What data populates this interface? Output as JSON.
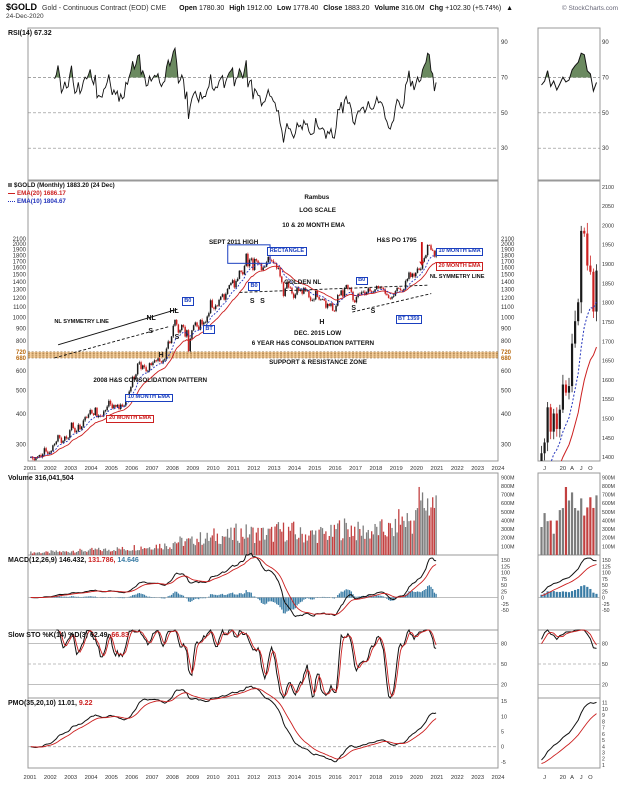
{
  "header": {
    "symbol": "$GOLD",
    "title": "Gold - Continuous Contract (EOD) CME",
    "source": "© StockCharts.com",
    "date": "24-Dec-2020",
    "quote": {
      "open_label": "Open",
      "open": "1780.30",
      "high_label": "High",
      "high": "1912.00",
      "low_label": "Low",
      "low": "1778.40",
      "close_label": "Close",
      "close": "1883.20",
      "volume_label": "Volume",
      "volume": "316.0M",
      "chg_label": "Chg",
      "chg": "+102.30 (+5.74%)",
      "chg_arrow": "▲"
    }
  },
  "panels": {
    "rsi": {
      "name": "RSI(14)",
      "value": "67.32"
    },
    "volume": {
      "name": "Volume",
      "value": "316,041,504"
    },
    "macd": {
      "name": "MACD(12,26,9)",
      "v1": "146.432,",
      "v2": "131.786,",
      "v3": "14.646"
    },
    "sto": {
      "name": "Slow STO %K(14) %D(3)",
      "v1": "62.49,",
      "v2": "66.83"
    },
    "pmo": {
      "name": "PMO(35,20,10)",
      "v1": "11.01,",
      "v2": "9.22"
    }
  },
  "colors": {
    "up": "#1a1a1a",
    "down": "#cc2020",
    "ema10": "#2233bb",
    "ema20": "#cc2020",
    "vol_up": "#7d7d7d",
    "vol_down": "#c24040",
    "macd_hist": "#3a7ca5",
    "macd_line": "#111111",
    "signal": "#cc2020",
    "rsi_fill": "#6b8a60",
    "rsi_line": "#111111",
    "sr_zone": "#eda23e",
    "sr_line": "#7a4a10",
    "sr_text": "#b86a10",
    "grid": "#999999",
    "axis_text": "#333333",
    "ann_blue": "#1a3fbf",
    "ann_red": "#cc2020"
  },
  "chart_data": {
    "type": "candlestick",
    "title": "$GOLD Gold - Continuous Contract (EOD) CME, Monthly",
    "timeframe": "monthly",
    "scale_note": "LOG SCALE",
    "x_domain_years": [
      2001,
      2024
    ],
    "x_tick_years": [
      2001,
      2002,
      2003,
      2004,
      2005,
      2006,
      2007,
      2008,
      2009,
      2010,
      2011,
      2012,
      2013,
      2014,
      2015,
      2016,
      2017,
      2018,
      2019,
      2020,
      2021,
      2022,
      2023,
      2024
    ],
    "price_scale": "log",
    "price_axis_ticks": [
      2100,
      2000,
      1900,
      1800,
      1700,
      1600,
      1500,
      1400,
      1300,
      1200,
      1100,
      1000,
      900,
      800,
      720,
      680,
      600,
      500,
      400,
      300
    ],
    "sr_zone": {
      "top": 720,
      "bottom": 680
    },
    "monthly_closes_2001_2020": [
      266,
      262,
      258,
      263,
      267,
      271,
      266,
      273,
      289,
      280,
      274,
      277,
      282,
      297,
      301,
      308,
      327,
      319,
      304,
      310,
      323,
      317,
      319,
      343,
      368,
      350,
      336,
      340,
      361,
      346,
      355,
      376,
      388,
      386,
      398,
      415,
      402,
      396,
      424,
      388,
      394,
      392,
      391,
      410,
      415,
      429,
      453,
      438,
      422,
      435,
      428,
      436,
      419,
      437,
      429,
      433,
      473,
      470,
      495,
      517,
      569,
      556,
      582,
      644,
      653,
      613,
      634,
      623,
      599,
      603,
      647,
      636,
      651,
      665,
      662,
      677,
      659,
      651,
      665,
      672,
      743,
      795,
      783,
      834,
      923,
      975,
      934,
      865,
      885,
      930,
      913,
      833,
      885,
      725,
      816,
      884,
      927,
      952,
      916,
      888,
      975,
      934,
      953,
      953,
      1008,
      1040,
      1175,
      1097,
      1083,
      1118,
      1114,
      1180,
      1215,
      1244,
      1181,
      1248,
      1308,
      1357,
      1384,
      1421,
      1327,
      1411,
      1439,
      1556,
      1535,
      1502,
      1628,
      1826,
      1622,
      1725,
      1746,
      1566,
      1737,
      1711,
      1669,
      1664,
      1564,
      1604,
      1615,
      1685,
      1774,
      1719,
      1711,
      1675,
      1661,
      1588,
      1594,
      1472,
      1394,
      1224,
      1313,
      1396,
      1327,
      1323,
      1253,
      1202,
      1240,
      1326,
      1284,
      1296,
      1250,
      1322,
      1282,
      1287,
      1208,
      1173,
      1176,
      1184,
      1283,
      1213,
      1183,
      1184,
      1190,
      1172,
      1095,
      1135,
      1114,
      1141,
      1065,
      1060,
      1116,
      1234,
      1233,
      1290,
      1215,
      1321,
      1357,
      1309,
      1317,
      1273,
      1174,
      1152,
      1211,
      1248,
      1247,
      1268,
      1275,
      1242,
      1268,
      1316,
      1281,
      1271,
      1275,
      1303,
      1345,
      1318,
      1325,
      1319,
      1300,
      1250,
      1233,
      1200,
      1192,
      1215,
      1226,
      1281,
      1321,
      1313,
      1292,
      1286,
      1306,
      1410,
      1438,
      1529,
      1466,
      1513,
      1473,
      1523,
      1588,
      1567,
      1584,
      1694,
      1752,
      1801,
      1986,
      1979,
      1896,
      1880,
      1777,
      1883
    ],
    "volume_year_base_millions": [
      30,
      38,
      50,
      60,
      70,
      90,
      110,
      155,
      190,
      220,
      255,
      245,
      275,
      235,
      245,
      310,
      270,
      290,
      400,
      600
    ],
    "indicators": {
      "rsi_period": 14,
      "ema_fast": 10,
      "ema_slow": 20,
      "macd": [
        12,
        26,
        9
      ],
      "stochastic": [
        14,
        3,
        3
      ],
      "pmo": [
        35,
        20,
        10
      ]
    },
    "rsi_ticks": [
      90,
      70,
      50,
      30
    ],
    "volume_ticks_millions": [
      900,
      800,
      700,
      600,
      500,
      400,
      300,
      200,
      100
    ],
    "macd_ticks": [
      150,
      125,
      100,
      75,
      50,
      25,
      0,
      -25,
      -50
    ],
    "sto_ticks": [
      80,
      50,
      20
    ],
    "pmo_ticks": [
      15,
      10,
      5,
      0,
      -5
    ],
    "legend": {
      "main": "$GOLD (Monthly) 1883.20 (24 Dec)",
      "ema20": "EMA(20) 1686.17",
      "ema10": "EMA(10) 1804.67"
    },
    "mini": {
      "slice_start_index": 221,
      "x_ticks": [
        {
          "j": 1,
          "label": "J"
        },
        {
          "j": 7,
          "label": "20"
        },
        {
          "j": 10,
          "label": "A"
        },
        {
          "j": 13,
          "label": "J"
        },
        {
          "j": 16,
          "label": "O"
        }
      ],
      "price_ticks": [
        2100,
        2050,
        2000,
        1950,
        1900,
        1850,
        1800,
        1750,
        1700,
        1650,
        1600,
        1550,
        1500,
        1450,
        1400
      ]
    },
    "annotations": [
      {
        "text": "SEPT 2011 HIGH",
        "fx": 0.385,
        "fy": 0.21,
        "cls": ""
      },
      {
        "text": "RECTANGLE",
        "fx": 0.509,
        "fy": 0.237,
        "cls": "bx-b"
      },
      {
        "text": "Rambus",
        "fx": 0.588,
        "fy": 0.05,
        "cls": ""
      },
      {
        "text": "LOG SCALE",
        "fx": 0.577,
        "fy": 0.098,
        "cls": ""
      },
      {
        "text": "10 & 20 MONTH EMA",
        "fx": 0.541,
        "fy": 0.15,
        "cls": ""
      },
      {
        "text": "GOLDEN NL",
        "fx": 0.545,
        "fy": 0.352,
        "cls": ""
      },
      {
        "text": "H&S PO 1795",
        "fx": 0.742,
        "fy": 0.203,
        "cls": ""
      },
      {
        "text": "10 MONTH EMA",
        "fx": 0.868,
        "fy": 0.238,
        "cls": "bx-b"
      },
      {
        "text": "20 MONTH EMA",
        "fx": 0.868,
        "fy": 0.29,
        "cls": "bx-r"
      },
      {
        "text": "NL SYMMETRY LINE",
        "fx": 0.855,
        "fy": 0.336,
        "cls": "sm"
      },
      {
        "text": "B0",
        "fx": 0.697,
        "fy": 0.342,
        "cls": "bx-b"
      },
      {
        "text": "B0",
        "fx": 0.468,
        "fy": 0.362,
        "cls": "bx-b"
      },
      {
        "text": "B0",
        "fx": 0.327,
        "fy": 0.416,
        "cls": "bx-b"
      },
      {
        "text": "BT 1359",
        "fx": 0.782,
        "fy": 0.48,
        "cls": "bx-b"
      },
      {
        "text": "BT",
        "fx": 0.372,
        "fy": 0.516,
        "cls": "bx-b"
      },
      {
        "text": "S",
        "fx": 0.472,
        "fy": 0.418,
        "cls": "lt"
      },
      {
        "text": "S",
        "fx": 0.494,
        "fy": 0.418,
        "cls": "lt"
      },
      {
        "text": "H",
        "fx": 0.62,
        "fy": 0.494,
        "cls": "lt"
      },
      {
        "text": "S",
        "fx": 0.688,
        "fy": 0.444,
        "cls": "lt"
      },
      {
        "text": "S",
        "fx": 0.729,
        "fy": 0.454,
        "cls": "lt"
      },
      {
        "text": "DEC. 2015 LOW",
        "fx": 0.566,
        "fy": 0.534,
        "cls": ""
      },
      {
        "text": "6 YEAR H&S CONSOLIDATION PATTERN",
        "fx": 0.476,
        "fy": 0.571,
        "cls": ""
      },
      {
        "text": "SUPPORT & RESISTANCE ZONE",
        "fx": 0.513,
        "fy": 0.638,
        "cls": ""
      },
      {
        "text": "NL SYMMETRY LINE",
        "fx": 0.056,
        "fy": 0.497,
        "cls": "sm"
      },
      {
        "text": "HL",
        "fx": 0.301,
        "fy": 0.452,
        "cls": "lt"
      },
      {
        "text": "NL",
        "fx": 0.252,
        "fy": 0.478,
        "cls": "lt"
      },
      {
        "text": "S",
        "fx": 0.256,
        "fy": 0.526,
        "cls": "lt"
      },
      {
        "text": "S",
        "fx": 0.312,
        "fy": 0.548,
        "cls": "lt"
      },
      {
        "text": "H",
        "fx": 0.278,
        "fy": 0.61,
        "cls": "lt"
      },
      {
        "text": "2008 H&S CONSOLIDATION PATTERN",
        "fx": 0.139,
        "fy": 0.704,
        "cls": ""
      },
      {
        "text": "10 MONTH EMA",
        "fx": 0.207,
        "fy": 0.76,
        "cls": "bx-b"
      },
      {
        "text": "20 MONTH EMA",
        "fx": 0.167,
        "fy": 0.834,
        "cls": "bx-r"
      }
    ],
    "shapes": [
      {
        "type": "rect",
        "x": 0.425,
        "y": 0.228,
        "w": 0.09,
        "h": 0.066,
        "color": "#1a3fbf"
      },
      {
        "type": "line",
        "x1": 0.45,
        "y1": 0.398,
        "x2": 0.852,
        "y2": 0.372,
        "dash": true,
        "color": "#111111"
      },
      {
        "type": "line",
        "x1": 0.064,
        "y1": 0.585,
        "x2": 0.318,
        "y2": 0.458,
        "dash": false,
        "color": "#111111"
      },
      {
        "type": "line",
        "x1": 0.056,
        "y1": 0.632,
        "x2": 0.3,
        "y2": 0.52,
        "dash": true,
        "color": "#111111"
      },
      {
        "type": "line",
        "x1": 0.69,
        "y1": 0.468,
        "x2": 0.858,
        "y2": 0.402,
        "dash": true,
        "color": "#111111"
      },
      {
        "type": "arrow",
        "x": 0.838,
        "y1": 0.218,
        "y2": 0.288,
        "color": "#cc1111"
      }
    ]
  }
}
